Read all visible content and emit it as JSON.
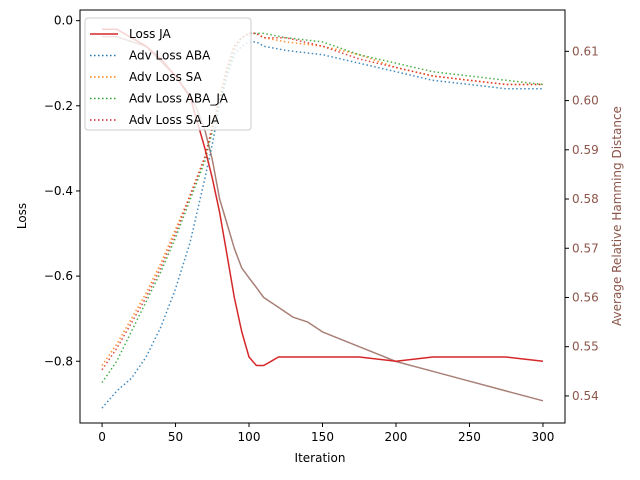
{
  "chart_data": {
    "type": "line",
    "xlabel": "Iteration",
    "ylabel": "Loss",
    "ylabel_right": "Average Relative Hamming Distance",
    "xlim": [
      -15,
      315
    ],
    "ylim": [
      -0.945,
      0.025
    ],
    "ylim_right": [
      0.5345,
      0.6184
    ],
    "xticks": [
      0,
      50,
      100,
      150,
      200,
      250,
      300
    ],
    "yticks": [
      0.0,
      -0.2,
      -0.4,
      -0.6,
      -0.8
    ],
    "yticks_right": [
      0.54,
      0.55,
      0.56,
      0.57,
      0.58,
      0.59,
      0.6,
      0.61
    ],
    "legend_position": "upper left",
    "legend": [
      "Loss JA",
      "Adv Loss ABA",
      "Adv Loss SA",
      "Adv Loss ABA_JA",
      "Adv Loss SA_JA"
    ],
    "series": [
      {
        "name": "Loss JA",
        "color": "#d62728",
        "style": "solid",
        "axis": "left",
        "x": [
          0,
          10,
          20,
          30,
          40,
          50,
          60,
          65,
          70,
          75,
          80,
          85,
          90,
          95,
          100,
          105,
          110,
          115,
          120,
          130,
          150,
          175,
          200,
          225,
          250,
          275,
          300
        ],
        "y": [
          -0.02,
          -0.02,
          -0.04,
          -0.06,
          -0.09,
          -0.13,
          -0.18,
          -0.24,
          -0.3,
          -0.37,
          -0.45,
          -0.55,
          -0.65,
          -0.73,
          -0.79,
          -0.81,
          -0.81,
          -0.8,
          -0.79,
          -0.79,
          -0.79,
          -0.79,
          -0.8,
          -0.79,
          -0.79,
          -0.79,
          -0.8
        ]
      },
      {
        "name": "Adv Loss ABA",
        "color": "#1f77b4",
        "style": "dotted",
        "axis": "left",
        "x": [
          0,
          10,
          20,
          30,
          40,
          50,
          60,
          70,
          75,
          80,
          85,
          90,
          95,
          100,
          105,
          110,
          125,
          150,
          175,
          200,
          225,
          250,
          275,
          300
        ],
        "y": [
          -0.91,
          -0.87,
          -0.84,
          -0.79,
          -0.72,
          -0.63,
          -0.52,
          -0.37,
          -0.29,
          -0.2,
          -0.13,
          -0.08,
          -0.06,
          -0.05,
          -0.05,
          -0.06,
          -0.07,
          -0.08,
          -0.1,
          -0.12,
          -0.14,
          -0.15,
          -0.16,
          -0.16
        ]
      },
      {
        "name": "Adv Loss SA",
        "color": "#ff7f0e",
        "style": "dotted",
        "axis": "left",
        "x": [
          0,
          10,
          20,
          30,
          40,
          50,
          60,
          70,
          75,
          80,
          85,
          90,
          95,
          100,
          105,
          110,
          125,
          150,
          175,
          200,
          225,
          250,
          275,
          300
        ],
        "y": [
          -0.81,
          -0.76,
          -0.7,
          -0.64,
          -0.57,
          -0.49,
          -0.41,
          -0.32,
          -0.25,
          -0.18,
          -0.11,
          -0.06,
          -0.04,
          -0.03,
          -0.03,
          -0.04,
          -0.05,
          -0.06,
          -0.08,
          -0.11,
          -0.13,
          -0.14,
          -0.15,
          -0.15
        ]
      },
      {
        "name": "Adv Loss ABA_JA",
        "color": "#2ca02c",
        "style": "dotted",
        "axis": "left",
        "x": [
          0,
          10,
          20,
          30,
          40,
          50,
          60,
          70,
          75,
          80,
          85,
          90,
          95,
          100,
          105,
          110,
          125,
          150,
          175,
          200,
          225,
          250,
          275,
          300
        ],
        "y": [
          -0.85,
          -0.8,
          -0.73,
          -0.66,
          -0.59,
          -0.51,
          -0.42,
          -0.33,
          -0.26,
          -0.19,
          -0.12,
          -0.07,
          -0.04,
          -0.03,
          -0.03,
          -0.03,
          -0.04,
          -0.05,
          -0.08,
          -0.1,
          -0.12,
          -0.13,
          -0.14,
          -0.15
        ]
      },
      {
        "name": "Adv Loss SA_JA",
        "color": "#d62728",
        "style": "dotted",
        "axis": "left",
        "x": [
          0,
          10,
          20,
          30,
          40,
          50,
          60,
          70,
          75,
          80,
          85,
          90,
          95,
          100,
          105,
          110,
          125,
          150,
          175,
          200,
          225,
          250,
          275,
          300
        ],
        "y": [
          -0.82,
          -0.77,
          -0.71,
          -0.65,
          -0.58,
          -0.5,
          -0.41,
          -0.32,
          -0.25,
          -0.18,
          -0.11,
          -0.06,
          -0.04,
          -0.03,
          -0.03,
          -0.04,
          -0.04,
          -0.06,
          -0.09,
          -0.11,
          -0.13,
          -0.14,
          -0.15,
          -0.15
        ]
      },
      {
        "name": "Average Relative Hamming Distance",
        "color": "#8c564b",
        "style": "solid",
        "axis": "right",
        "in_legend": false,
        "x": [
          0,
          10,
          20,
          30,
          40,
          50,
          60,
          65,
          70,
          75,
          80,
          85,
          90,
          95,
          100,
          105,
          110,
          120,
          130,
          140,
          150,
          175,
          200,
          225,
          250,
          275,
          300
        ],
        "y": [
          0.613,
          0.613,
          0.612,
          0.611,
          0.608,
          0.605,
          0.601,
          0.598,
          0.594,
          0.588,
          0.58,
          0.575,
          0.57,
          0.566,
          0.564,
          0.562,
          0.56,
          0.558,
          0.556,
          0.555,
          0.553,
          0.55,
          0.547,
          0.545,
          0.543,
          0.541,
          0.539
        ]
      }
    ]
  }
}
